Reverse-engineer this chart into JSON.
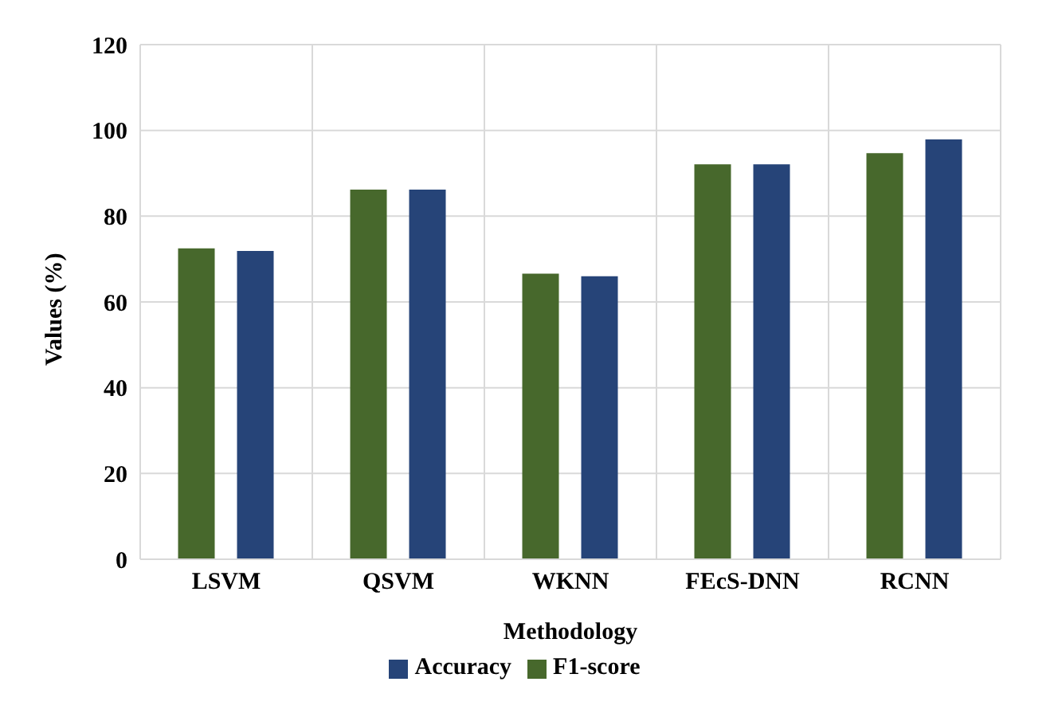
{
  "chart_data": {
    "type": "bar",
    "xlabel": "Methodology",
    "ylabel": "Values (%)",
    "categories": [
      "LSVM",
      "QSVM",
      "WKNN",
      "FEcS-DNN",
      "RCNN"
    ],
    "series": [
      {
        "name": "F1-score",
        "color": "#47682c",
        "values": [
          72.5,
          86.2,
          66.6,
          92.1,
          94.7
        ]
      },
      {
        "name": "Accuracy",
        "color": "#264478",
        "values": [
          71.9,
          86.2,
          66.0,
          92.1,
          97.9
        ]
      }
    ],
    "ylim": [
      0,
      120
    ],
    "yticks": [
      0,
      20,
      40,
      60,
      80,
      100,
      120
    ],
    "grid": true,
    "legend": "bottom"
  }
}
